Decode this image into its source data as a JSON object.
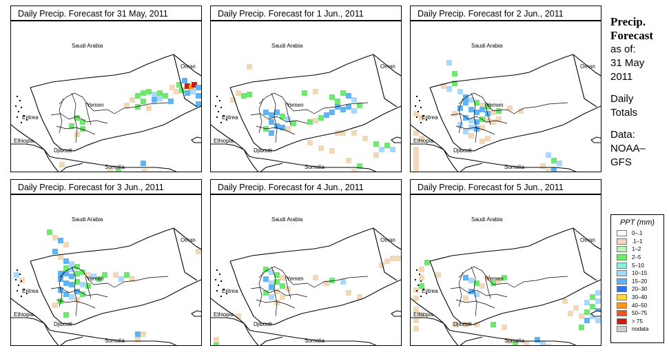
{
  "panels": [
    {
      "title": "Daily Precip. Forecast for  31 May, 2011",
      "cells": [
        [
          230,
          92,
          "t"
        ],
        [
          240,
          88,
          "g"
        ],
        [
          248,
          82,
          "b"
        ],
        [
          252,
          90,
          "r"
        ],
        [
          258,
          92,
          "o"
        ],
        [
          262,
          88,
          "r"
        ],
        [
          268,
          92,
          "b"
        ],
        [
          276,
          86,
          "r"
        ],
        [
          236,
          98,
          "t"
        ],
        [
          244,
          96,
          "g"
        ],
        [
          252,
          100,
          "b"
        ],
        [
          260,
          98,
          "c"
        ],
        [
          268,
          104,
          "b"
        ],
        [
          276,
          100,
          "b"
        ],
        [
          180,
          104,
          "g"
        ],
        [
          188,
          100,
          "g"
        ],
        [
          196,
          98,
          "g"
        ],
        [
          204,
          102,
          "c"
        ],
        [
          212,
          100,
          "g"
        ],
        [
          220,
          104,
          "g"
        ],
        [
          172,
          110,
          "t"
        ],
        [
          188,
          112,
          "g"
        ],
        [
          204,
          110,
          "b"
        ],
        [
          212,
          108,
          "c"
        ],
        [
          228,
          112,
          "b"
        ],
        [
          164,
          118,
          "t"
        ],
        [
          180,
          120,
          "g"
        ],
        [
          196,
          122,
          "t"
        ],
        [
          268,
          116,
          "b"
        ],
        [
          276,
          122,
          "b"
        ],
        [
          276,
          128,
          "c"
        ],
        [
          92,
          136,
          "g"
        ],
        [
          100,
          142,
          "g"
        ],
        [
          84,
          148,
          "g"
        ],
        [
          100,
          152,
          "g"
        ],
        [
          92,
          160,
          "t"
        ],
        [
          70,
          204,
          "t"
        ],
        [
          188,
          202,
          "b"
        ],
        [
          140,
          214,
          "t"
        ],
        [
          152,
          214,
          "g"
        ],
        [
          190,
          214,
          "t"
        ]
      ]
    },
    {
      "title": "Daily Precip. Forecast for  1 Jun., 2011",
      "cells": [
        [
          52,
          62,
          "t"
        ],
        [
          36,
          100,
          "t"
        ],
        [
          44,
          104,
          "g"
        ],
        [
          52,
          102,
          "g"
        ],
        [
          28,
          110,
          "t"
        ],
        [
          132,
          100,
          "g"
        ],
        [
          148,
          98,
          "t"
        ],
        [
          172,
          106,
          "g"
        ],
        [
          188,
          100,
          "g"
        ],
        [
          196,
          104,
          "b"
        ],
        [
          204,
          110,
          "c"
        ],
        [
          180,
          112,
          "g"
        ],
        [
          180,
          120,
          "b"
        ],
        [
          188,
          124,
          "b"
        ],
        [
          196,
          120,
          "b"
        ],
        [
          204,
          126,
          "c"
        ],
        [
          212,
          118,
          "g"
        ],
        [
          172,
          128,
          "b"
        ],
        [
          164,
          132,
          "b"
        ],
        [
          156,
          136,
          "g"
        ],
        [
          148,
          140,
          "t"
        ],
        [
          140,
          142,
          "g"
        ],
        [
          76,
          128,
          "b"
        ],
        [
          84,
          132,
          "b"
        ],
        [
          92,
          128,
          "b"
        ],
        [
          100,
          134,
          "g"
        ],
        [
          108,
          138,
          "c"
        ],
        [
          116,
          144,
          "g"
        ],
        [
          84,
          142,
          "b"
        ],
        [
          92,
          148,
          "b"
        ],
        [
          100,
          150,
          "b"
        ],
        [
          108,
          152,
          "t"
        ],
        [
          76,
          152,
          "g"
        ],
        [
          84,
          158,
          "b"
        ],
        [
          180,
          158,
          "t"
        ],
        [
          188,
          158,
          "t"
        ],
        [
          204,
          158,
          "t"
        ],
        [
          220,
          166,
          "t"
        ],
        [
          236,
          174,
          "g"
        ],
        [
          252,
          176,
          "g"
        ],
        [
          244,
          182,
          "c"
        ],
        [
          260,
          182,
          "c"
        ],
        [
          236,
          190,
          "t"
        ],
        [
          140,
          172,
          "t"
        ],
        [
          156,
          180,
          "t"
        ],
        [
          172,
          184,
          "t"
        ],
        [
          196,
          198,
          "t"
        ],
        [
          212,
          206,
          "g"
        ],
        [
          204,
          214,
          "t"
        ]
      ]
    },
    {
      "title": "Daily Precip. Forecast for  2 Jun., 2011",
      "cells": [
        [
          52,
          56,
          "c"
        ],
        [
          60,
          72,
          "g"
        ],
        [
          44,
          90,
          "t"
        ],
        [
          52,
          94,
          "c"
        ],
        [
          60,
          86,
          "g"
        ],
        [
          68,
          98,
          "c"
        ],
        [
          76,
          106,
          "b"
        ],
        [
          84,
          110,
          "c"
        ],
        [
          76,
          114,
          "b"
        ],
        [
          92,
          114,
          "g"
        ],
        [
          100,
          118,
          "t"
        ],
        [
          108,
          120,
          "g"
        ],
        [
          68,
          122,
          "b"
        ],
        [
          84,
          124,
          "b"
        ],
        [
          92,
          128,
          "b"
        ],
        [
          100,
          124,
          "b"
        ],
        [
          108,
          130,
          "b"
        ],
        [
          116,
          128,
          "t"
        ],
        [
          124,
          126,
          "g"
        ],
        [
          140,
          122,
          "t"
        ],
        [
          156,
          126,
          "t"
        ],
        [
          60,
          130,
          "t"
        ],
        [
          76,
          136,
          "b"
        ],
        [
          84,
          140,
          "c"
        ],
        [
          92,
          142,
          "b"
        ],
        [
          100,
          138,
          "g"
        ],
        [
          108,
          140,
          "t"
        ],
        [
          116,
          142,
          "t"
        ],
        [
          124,
          138,
          "t"
        ],
        [
          68,
          146,
          "c"
        ],
        [
          84,
          150,
          "c"
        ],
        [
          92,
          152,
          "b"
        ],
        [
          100,
          150,
          "t"
        ],
        [
          76,
          156,
          "c"
        ],
        [
          84,
          162,
          "t"
        ],
        [
          4,
          130,
          "t"
        ],
        [
          12,
          136,
          "t"
        ],
        [
          4,
          158,
          "t"
        ],
        [
          12,
          166,
          "t"
        ],
        [
          4,
          182,
          "t"
        ],
        [
          4,
          190,
          "t"
        ],
        [
          4,
          198,
          "t"
        ],
        [
          4,
          206,
          "t"
        ],
        [
          4,
          214,
          "t"
        ],
        [
          100,
          170,
          "t"
        ],
        [
          108,
          166,
          "t"
        ],
        [
          196,
          190,
          "c"
        ],
        [
          204,
          198,
          "g"
        ],
        [
          212,
          202,
          "c"
        ],
        [
          188,
          206,
          "t"
        ],
        [
          204,
          212,
          "b"
        ],
        [
          196,
          214,
          "t"
        ]
      ]
    },
    {
      "title": "Daily Precip. Forecast for  3 Jun., 2011",
      "cells": [
        [
          52,
          50,
          "g"
        ],
        [
          60,
          58,
          "t"
        ],
        [
          68,
          62,
          "b"
        ],
        [
          76,
          68,
          "t"
        ],
        [
          60,
          78,
          "b"
        ],
        [
          68,
          86,
          "t"
        ],
        [
          76,
          92,
          "b"
        ],
        [
          84,
          96,
          "c"
        ],
        [
          92,
          100,
          "g"
        ],
        [
          76,
          102,
          "g"
        ],
        [
          84,
          104,
          "c"
        ],
        [
          68,
          110,
          "b"
        ],
        [
          76,
          110,
          "b"
        ],
        [
          84,
          114,
          "b"
        ],
        [
          92,
          110,
          "g"
        ],
        [
          100,
          108,
          "g"
        ],
        [
          108,
          112,
          "t"
        ],
        [
          116,
          114,
          "c"
        ],
        [
          124,
          118,
          "g"
        ],
        [
          132,
          112,
          "g"
        ],
        [
          148,
          112,
          "t"
        ],
        [
          156,
          118,
          "c"
        ],
        [
          164,
          112,
          "g"
        ],
        [
          172,
          118,
          "t"
        ],
        [
          68,
          118,
          "b"
        ],
        [
          76,
          124,
          "b"
        ],
        [
          84,
          126,
          "b"
        ],
        [
          92,
          122,
          "g"
        ],
        [
          100,
          126,
          "c"
        ],
        [
          108,
          128,
          "g"
        ],
        [
          68,
          134,
          "b"
        ],
        [
          76,
          140,
          "b"
        ],
        [
          92,
          136,
          "b"
        ],
        [
          100,
          140,
          "g"
        ],
        [
          84,
          144,
          "c"
        ],
        [
          92,
          148,
          "t"
        ],
        [
          4,
          112,
          "c"
        ],
        [
          12,
          120,
          "t"
        ],
        [
          68,
          150,
          "g"
        ],
        [
          60,
          156,
          "t"
        ],
        [
          76,
          170,
          "g"
        ],
        [
          180,
          198,
          "b"
        ],
        [
          188,
          198,
          "t"
        ],
        [
          180,
          206,
          "t"
        ],
        [
          268,
          78,
          "t"
        ]
      ]
    },
    {
      "title": "Daily Precip. Forecast for  4 Jun., 2011",
      "cells": [
        [
          76,
          104,
          "g"
        ],
        [
          84,
          108,
          "c"
        ],
        [
          92,
          112,
          "g"
        ],
        [
          100,
          116,
          "t"
        ],
        [
          76,
          118,
          "b"
        ],
        [
          84,
          124,
          "c"
        ],
        [
          92,
          122,
          "g"
        ],
        [
          84,
          130,
          "b"
        ],
        [
          92,
          136,
          "t"
        ],
        [
          100,
          128,
          "g"
        ],
        [
          108,
          132,
          "t"
        ],
        [
          76,
          138,
          "g"
        ],
        [
          84,
          144,
          "c"
        ],
        [
          100,
          144,
          "t"
        ],
        [
          92,
          152,
          "t"
        ],
        [
          148,
          116,
          "t"
        ],
        [
          164,
          124,
          "t"
        ],
        [
          172,
          120,
          "g"
        ],
        [
          188,
          122,
          "c"
        ],
        [
          244,
          98,
          "t"
        ],
        [
          252,
          92,
          "t"
        ],
        [
          260,
          88,
          "t"
        ],
        [
          268,
          88,
          "t"
        ],
        [
          276,
          86,
          "t"
        ],
        [
          196,
          138,
          "t"
        ],
        [
          212,
          144,
          "t"
        ],
        [
          4,
          214,
          "g"
        ],
        [
          4,
          206,
          "t"
        ],
        [
          36,
          172,
          "t"
        ]
      ]
    },
    {
      "title": "Daily Precip. Forecast for  5 Jun., 2011",
      "cells": [
        [
          20,
          94,
          "g"
        ],
        [
          12,
          104,
          "t"
        ],
        [
          12,
          116,
          "t"
        ],
        [
          12,
          128,
          "g"
        ],
        [
          36,
          112,
          "t"
        ],
        [
          76,
          116,
          "b"
        ],
        [
          84,
          120,
          "c"
        ],
        [
          92,
          124,
          "g"
        ],
        [
          100,
          128,
          "t"
        ],
        [
          84,
          136,
          "b"
        ],
        [
          92,
          140,
          "c"
        ],
        [
          76,
          146,
          "t"
        ],
        [
          108,
          116,
          "t"
        ],
        [
          116,
          124,
          "g"
        ],
        [
          124,
          120,
          "t"
        ],
        [
          132,
          116,
          "g"
        ],
        [
          4,
          134,
          "t"
        ],
        [
          4,
          146,
          "t"
        ],
        [
          4,
          162,
          "t"
        ],
        [
          4,
          178,
          "t"
        ],
        [
          4,
          190,
          "t"
        ],
        [
          12,
          170,
          "t"
        ],
        [
          60,
          184,
          "t"
        ],
        [
          76,
          184,
          "t"
        ],
        [
          92,
          184,
          "t"
        ],
        [
          116,
          184,
          "g"
        ],
        [
          132,
          188,
          "t"
        ],
        [
          252,
          152,
          "c"
        ],
        [
          260,
          144,
          "g"
        ],
        [
          268,
          138,
          "c"
        ],
        [
          276,
          132,
          "b"
        ],
        [
          260,
          158,
          "g"
        ],
        [
          268,
          150,
          "c"
        ],
        [
          276,
          144,
          "b"
        ],
        [
          252,
          166,
          "g"
        ],
        [
          260,
          172,
          "c"
        ],
        [
          268,
          164,
          "b"
        ],
        [
          276,
          158,
          "c"
        ],
        [
          244,
          172,
          "t"
        ],
        [
          252,
          178,
          "b"
        ],
        [
          268,
          178,
          "c"
        ],
        [
          276,
          170,
          "g"
        ],
        [
          244,
          188,
          "g"
        ],
        [
          236,
          160,
          "t"
        ],
        [
          228,
          168,
          "t"
        ],
        [
          220,
          150,
          "t"
        ],
        [
          140,
          208,
          "t"
        ],
        [
          148,
          212,
          "g"
        ],
        [
          164,
          212,
          "t"
        ],
        [
          180,
          206,
          "b"
        ],
        [
          188,
          212,
          "c"
        ],
        [
          196,
          216,
          "t"
        ]
      ]
    }
  ],
  "map_labels": {
    "saudi": "Saudi Arabia",
    "oman": "Oman",
    "yemen": "Yemen",
    "eritrea": "Eritrea",
    "ethiopia": "Ethiopia",
    "djibouti": "Djibouti",
    "somalia": "Somalia"
  },
  "sidebar": {
    "heading_line1": "Precip.",
    "heading_line2": "Forecast",
    "asof_label": "as of:",
    "date_line1": "31 May",
    "date_line2": "2011",
    "totals_line1": "Daily",
    "totals_line2": "Totals",
    "data_line1": "Data:",
    "data_line2": "NOAA–",
    "data_line3": "GFS"
  },
  "legend": {
    "title": "PPT (mm)",
    "items": [
      {
        "label": "0–.1",
        "color": "#ffffff"
      },
      {
        "label": ".1–1",
        "color": "#f0d8b8"
      },
      {
        "label": "1–2",
        "color": "#bcf2bc"
      },
      {
        "label": "2–5",
        "color": "#6ee86e"
      },
      {
        "label": "5–10",
        "color": "#8ff0d8"
      },
      {
        "label": "10–15",
        "color": "#a8d8ff"
      },
      {
        "label": "15–20",
        "color": "#5fb4f5"
      },
      {
        "label": "20–30",
        "color": "#2c72e8"
      },
      {
        "label": "30–40",
        "color": "#ffd84a"
      },
      {
        "label": "40–50",
        "color": "#f89a22"
      },
      {
        "label": "50–75",
        "color": "#e8561c"
      },
      {
        "label": "> 75",
        "color": "#c81e14"
      },
      {
        "label": "nodata",
        "color": "#cfcfcf"
      }
    ]
  }
}
